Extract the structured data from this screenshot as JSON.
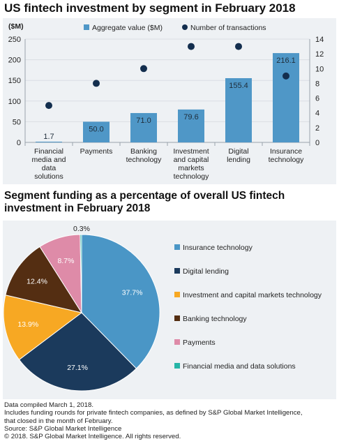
{
  "chart_data": [
    {
      "type": "bar",
      "title": "US fintech investment by segment in February 2018",
      "ylabel": "($M)",
      "y2label": "",
      "categories": [
        [
          "Financial",
          "media and",
          "data",
          "solutions"
        ],
        [
          "Payments"
        ],
        [
          "Banking",
          "technology"
        ],
        [
          "Investment",
          "and capital",
          "markets",
          "technology"
        ],
        [
          "Digital",
          "lending"
        ],
        [
          "Insurance",
          "technology"
        ]
      ],
      "series": [
        {
          "name": "Aggregate value ($M)",
          "type": "bar",
          "axis": "left",
          "values": [
            1.7,
            50.0,
            71.0,
            79.6,
            155.4,
            216.1
          ],
          "labels": [
            "1.7",
            "50.0",
            "71.0",
            "79.6",
            "155.4",
            "216.1"
          ]
        },
        {
          "name": "Number of transactions",
          "type": "scatter",
          "axis": "right",
          "values": [
            5,
            8,
            10,
            13,
            13,
            9
          ]
        }
      ],
      "ylim": [
        0,
        250
      ],
      "yticks": [
        0,
        50,
        100,
        150,
        200,
        250
      ],
      "y2lim": [
        0,
        14
      ],
      "y2ticks": [
        0,
        2,
        4,
        6,
        8,
        10,
        12,
        14
      ],
      "grid": true,
      "legend": "top-center",
      "colors": {
        "bar": "#4f97c7",
        "marker": "#132e4e"
      }
    },
    {
      "type": "pie",
      "title": "Segment funding as a percentage of overall US fintech investment in February 2018",
      "slices": [
        {
          "label": "Insurance technology",
          "value": 37.7,
          "display": "37.7%",
          "color": "#4a96c6"
        },
        {
          "label": "Digital lending",
          "value": 27.1,
          "display": "27.1%",
          "color": "#1b3a5c"
        },
        {
          "label": "Investment and capital markets technology",
          "value": 13.9,
          "display": "13.9%",
          "color": "#f7a823"
        },
        {
          "label": "Banking technology",
          "value": 12.4,
          "display": "12.4%",
          "color": "#542e12"
        },
        {
          "label": "Payments",
          "value": 8.7,
          "display": "8.7%",
          "color": "#de8ba8"
        },
        {
          "label": "Financial media and data solutions",
          "value": 0.3,
          "display": "0.3%",
          "color": "#26b5a7"
        }
      ],
      "legend": "right"
    }
  ],
  "footer": [
    "Data compiled March 1, 2018.",
    "Includes funding rounds for private fintech companies, as defined by S&P Global Market Intelligence,",
    "that closed in the month of February.",
    "Source: S&P Global Market Intelligence",
    "© 2018. S&P Global Market Intelligence. All rights reserved."
  ]
}
